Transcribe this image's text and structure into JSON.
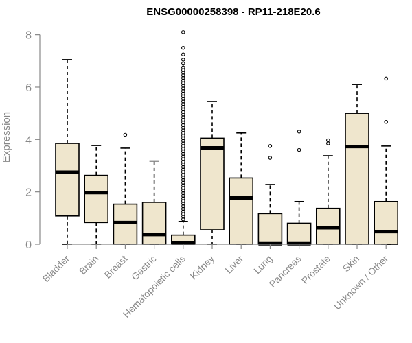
{
  "chart_data": {
    "type": "boxplot",
    "title": "ENSG00000258398 - RP11-218E20.6",
    "xlabel": "",
    "ylabel": "Expression",
    "ylim": [
      0,
      8.2
    ],
    "yticks": [
      0,
      2,
      4,
      6,
      8
    ],
    "colors": {
      "box_fill": "#efe6cd",
      "box_stroke": "#000000",
      "axis": "#888888"
    },
    "categories": [
      "Bladder",
      "Brain",
      "Breast",
      "Gastric",
      "Hematopoietic cells",
      "Kidney",
      "Liver",
      "Lung",
      "Pancreas",
      "Prostate",
      "Skin",
      "Unknown / Other"
    ],
    "boxes": [
      {
        "name": "Bladder",
        "min": 0,
        "q1": 1.08,
        "median": 2.75,
        "q3": 3.85,
        "max": 7.05,
        "outliers": []
      },
      {
        "name": "Brain",
        "min": 0,
        "q1": 0.83,
        "median": 1.97,
        "q3": 2.63,
        "max": 3.77,
        "outliers": []
      },
      {
        "name": "Breast",
        "min": 0,
        "q1": 0,
        "median": 0.83,
        "q3": 1.53,
        "max": 3.67,
        "outliers": [
          4.18
        ]
      },
      {
        "name": "Gastric",
        "min": 0,
        "q1": 0,
        "median": 0.37,
        "q3": 1.6,
        "max": 3.18,
        "outliers": []
      },
      {
        "name": "Hematopoietic cells",
        "min": 0,
        "q1": 0,
        "median": 0.04,
        "q3": 0.35,
        "max": 0.87,
        "outliers": [
          0.95,
          1.05,
          1.15,
          1.25,
          1.35,
          1.45,
          1.55,
          1.65,
          1.75,
          1.85,
          1.95,
          2.05,
          2.15,
          2.25,
          2.35,
          2.45,
          2.55,
          2.65,
          2.75,
          2.85,
          2.95,
          3.05,
          3.15,
          3.25,
          3.35,
          3.45,
          3.55,
          3.65,
          3.75,
          3.85,
          3.95,
          4.05,
          4.15,
          4.25,
          4.35,
          4.45,
          4.55,
          4.65,
          4.75,
          4.85,
          4.95,
          5.05,
          5.15,
          5.25,
          5.35,
          5.45,
          5.55,
          5.65,
          5.75,
          5.85,
          5.95,
          6.05,
          6.15,
          6.25,
          6.35,
          6.45,
          6.55,
          6.65,
          6.75,
          6.9,
          7.05,
          7.25,
          7.5,
          8.1
        ]
      },
      {
        "name": "Kidney",
        "min": 0,
        "q1": 0.55,
        "median": 3.68,
        "q3": 4.05,
        "max": 5.45,
        "outliers": []
      },
      {
        "name": "Liver",
        "min": 0,
        "q1": 0,
        "median": 1.77,
        "q3": 2.53,
        "max": 4.25,
        "outliers": []
      },
      {
        "name": "Lung",
        "min": 0,
        "q1": 0,
        "median": 0.02,
        "q3": 1.17,
        "max": 2.28,
        "outliers": [
          3.3,
          3.75
        ]
      },
      {
        "name": "Pancreas",
        "min": 0,
        "q1": 0,
        "median": 0.02,
        "q3": 0.8,
        "max": 1.63,
        "outliers": [
          3.6,
          4.3
        ]
      },
      {
        "name": "Prostate",
        "min": 0,
        "q1": 0,
        "median": 0.63,
        "q3": 1.37,
        "max": 3.38,
        "outliers": [
          3.85,
          3.97
        ]
      },
      {
        "name": "Skin",
        "min": 0,
        "q1": 0,
        "median": 3.73,
        "q3": 5.0,
        "max": 6.1,
        "outliers": []
      },
      {
        "name": "Unknown / Other",
        "min": 0,
        "q1": 0,
        "median": 0.48,
        "q3": 1.63,
        "max": 3.75,
        "outliers": [
          4.67,
          6.33
        ]
      }
    ]
  }
}
